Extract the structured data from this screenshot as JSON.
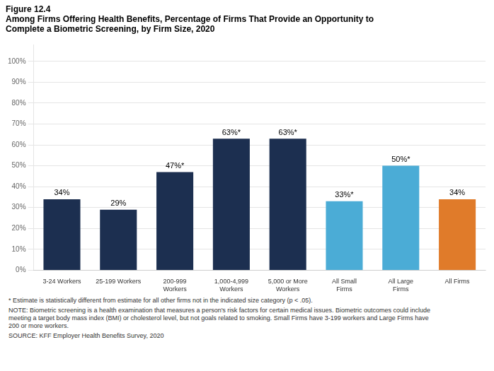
{
  "chart_data": {
    "type": "bar",
    "title": [
      "Figure 12.4",
      "Among Firms Offering Health Benefits, Percentage of Firms That Provide an Opportunity to",
      "Complete a Biometric Screening, by Firm Size, 2020"
    ],
    "categories": [
      "3-24 Workers",
      "25-199 Workers",
      "200-999\nWorkers",
      "1,000-4,999\nWorkers",
      "5,000 or More\nWorkers",
      "All Small\nFirms",
      "All Large\nFirms",
      "All Firms"
    ],
    "values": [
      34,
      29,
      47,
      63,
      63,
      33,
      50,
      34
    ],
    "value_labels": [
      "34%",
      "29%",
      "47%*",
      "63%*",
      "63%*",
      "33%*",
      "50%*",
      "34%"
    ],
    "data_labels": true,
    "colors": [
      "#1c2f50",
      "#1c2f50",
      "#1c2f50",
      "#1c2f50",
      "#1c2f50",
      "#4bacd6",
      "#4bacd6",
      "#e07b2a"
    ],
    "ylim": [
      0,
      108
    ],
    "yticks": [
      {
        "value": 0,
        "label": "0%"
      },
      {
        "value": 10,
        "label": "10%"
      },
      {
        "value": 20,
        "label": "20%"
      },
      {
        "value": 30,
        "label": "30%"
      },
      {
        "value": 40,
        "label": "40%"
      },
      {
        "value": 50,
        "label": "50%"
      },
      {
        "value": 60,
        "label": "60%"
      },
      {
        "value": 70,
        "label": "70%"
      },
      {
        "value": 80,
        "label": "80%"
      },
      {
        "value": 90,
        "label": "90%"
      },
      {
        "value": 100,
        "label": "100%"
      }
    ],
    "grid": true,
    "annotations": [
      "* Estimate is statistically different from estimate for all other firms not in the indicated size category (p < .05).",
      "NOTE: Biometric screening is a health examination that measures a person's risk factors for certain medical issues. Biometric outcomes could include\nmeeting a target body mass index (BMI) or cholesterol level, but not goals related to smoking. Small Firms have 3-199 workers and Large Firms have\n200 or more workers.",
      "SOURCE: KFF Employer Health Benefits Survey, 2020"
    ]
  }
}
